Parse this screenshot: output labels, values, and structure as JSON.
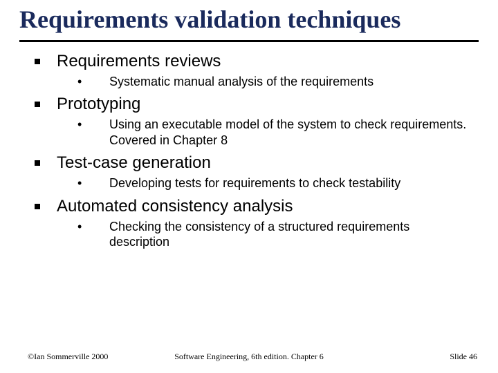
{
  "title": "Requirements validation techniques",
  "colors": {
    "title": "#1a2a5c",
    "text": "#000000",
    "rule": "#000000",
    "background": "#ffffff",
    "bullet_square": "#000000"
  },
  "typography": {
    "title_font": "Times New Roman",
    "title_weight": "bold",
    "title_size_pt": 36,
    "body_font": "Arial",
    "l1_size_pt": 24,
    "l2_size_pt": 18,
    "footer_font": "Times New Roman",
    "footer_size_pt": 12
  },
  "items": [
    {
      "heading": "Requirements reviews",
      "sub": "Systematic manual analysis of the requirements"
    },
    {
      "heading": "Prototyping",
      "sub": "Using an executable model of the system to check requirements. Covered in Chapter 8"
    },
    {
      "heading": "Test-case generation",
      "sub": "Developing tests for requirements to check testability"
    },
    {
      "heading": "Automated consistency analysis",
      "sub": "Checking the consistency of a structured requirements description"
    }
  ],
  "footer": {
    "left": "©Ian Sommerville 2000",
    "center": "Software Engineering, 6th edition. Chapter 6",
    "right": "Slide 46"
  }
}
